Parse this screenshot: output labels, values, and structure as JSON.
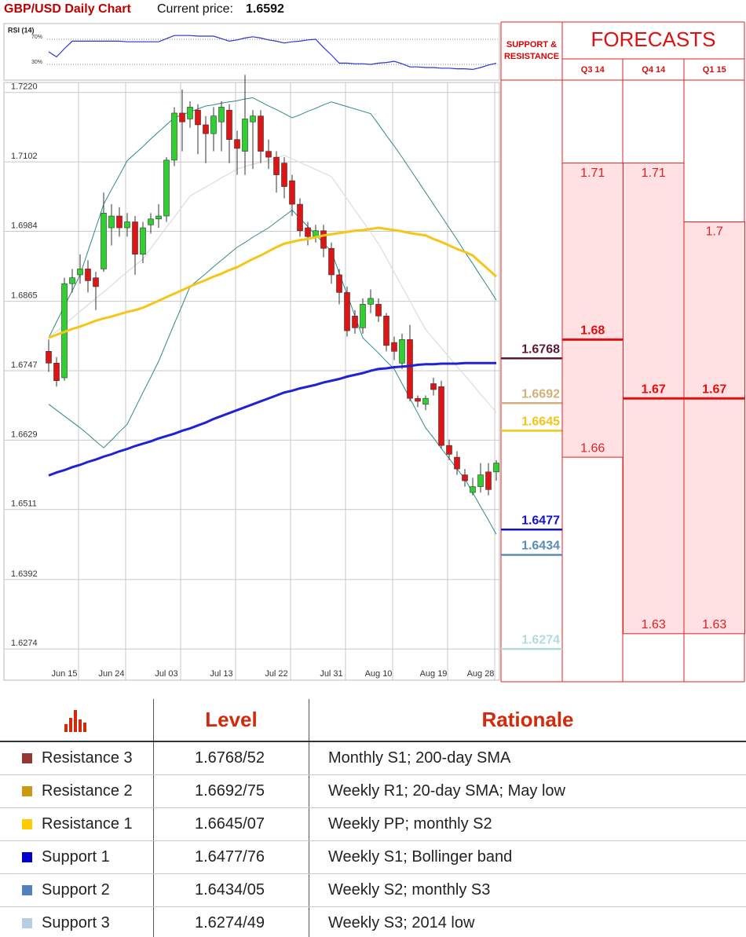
{
  "header": {
    "title": "GBP/USD Daily Chart",
    "price_label": "Current price:",
    "price": 1.6592
  },
  "chart_data": [
    {
      "type": "line",
      "title": "RSI (14)",
      "color": "#2b35c8",
      "values": [
        50,
        42,
        55,
        67,
        67,
        67,
        67,
        67,
        67,
        67,
        66,
        66,
        66,
        66,
        66,
        71,
        76,
        76,
        76,
        75,
        75,
        75,
        71,
        67,
        69,
        72,
        74,
        72,
        69,
        67,
        64,
        66,
        67,
        69,
        70,
        57,
        45,
        32,
        32,
        31,
        31,
        30,
        32,
        33,
        35,
        31,
        26,
        26,
        25,
        25,
        24,
        24,
        23,
        23,
        22,
        25,
        29,
        32
      ],
      "ylim": [
        5,
        95
      ],
      "yticks": [
        {
          "value": 70,
          "label": "70%"
        },
        {
          "value": 30,
          "label": "30%"
        }
      ]
    },
    {
      "type": "candlestick",
      "up_color": "#2ed12e",
      "down_color": "#e01414",
      "grid": true,
      "categories": [
        null,
        null,
        "Jun 15",
        null,
        null,
        null,
        null,
        null,
        "Jun 24",
        null,
        null,
        null,
        null,
        null,
        null,
        "Jul 03",
        null,
        null,
        null,
        null,
        null,
        null,
        "Jul 13",
        null,
        null,
        null,
        null,
        null,
        null,
        "Jul 22",
        null,
        null,
        null,
        null,
        null,
        null,
        "Jul 31",
        null,
        null,
        null,
        null,
        null,
        "Aug 10",
        null,
        null,
        null,
        null,
        null,
        null,
        "Aug 19",
        null,
        null,
        null,
        null,
        null,
        "Aug 28",
        null,
        null
      ],
      "open": [
        1.678,
        1.676,
        1.6735,
        1.6895,
        1.691,
        1.692,
        1.6905,
        1.692,
        1.699,
        1.701,
        1.699,
        1.7,
        1.6945,
        1.6995,
        1.7005,
        1.701,
        1.7105,
        1.7185,
        1.7175,
        1.719,
        1.7165,
        1.715,
        1.717,
        1.719,
        1.714,
        1.712,
        1.717,
        1.718,
        1.712,
        1.711,
        1.71,
        1.707,
        1.703,
        1.699,
        1.6975,
        1.6985,
        1.6955,
        1.691,
        1.688,
        1.684,
        1.682,
        1.686,
        1.686,
        1.684,
        1.6795,
        1.676,
        1.68,
        1.67,
        1.669,
        1.6725,
        1.672,
        1.662,
        1.66,
        1.657,
        1.654,
        1.655,
        1.6575,
        1.6575
      ],
      "high": [
        1.68,
        1.677,
        1.6905,
        1.692,
        1.6945,
        1.6935,
        1.6915,
        1.705,
        1.703,
        1.7025,
        1.7015,
        1.701,
        1.7,
        1.7015,
        1.703,
        1.711,
        1.7195,
        1.7225,
        1.7205,
        1.72,
        1.718,
        1.7195,
        1.7205,
        1.72,
        1.7155,
        1.725,
        1.719,
        1.719,
        1.714,
        1.712,
        1.711,
        1.708,
        1.704,
        1.7,
        1.6995,
        1.6995,
        1.6965,
        1.692,
        1.689,
        1.685,
        1.687,
        1.6885,
        1.687,
        1.6845,
        1.6805,
        1.681,
        1.6825,
        1.6705,
        1.6705,
        1.6735,
        1.673,
        1.663,
        1.661,
        1.658,
        1.6565,
        1.659,
        1.659,
        1.6595
      ],
      "low": [
        1.6745,
        1.672,
        1.673,
        1.688,
        1.6895,
        1.688,
        1.685,
        1.6915,
        1.696,
        1.6975,
        1.6975,
        1.691,
        1.693,
        1.698,
        1.699,
        1.7,
        1.7095,
        1.712,
        1.716,
        1.7115,
        1.71,
        1.712,
        1.712,
        1.71,
        1.708,
        1.708,
        1.709,
        1.71,
        1.709,
        1.705,
        1.704,
        1.701,
        1.6975,
        1.696,
        1.6965,
        1.694,
        1.6895,
        1.686,
        1.6805,
        1.681,
        1.681,
        1.6845,
        1.683,
        1.678,
        1.6765,
        1.675,
        1.6695,
        1.6685,
        1.668,
        1.6705,
        1.6615,
        1.6595,
        1.657,
        1.655,
        1.6535,
        1.654,
        1.6535,
        1.656
      ],
      "close": [
        1.676,
        1.673,
        1.6895,
        1.6905,
        1.692,
        1.69,
        1.689,
        1.7015,
        1.701,
        1.699,
        1.7,
        1.6945,
        1.699,
        1.7005,
        1.701,
        1.7105,
        1.7185,
        1.717,
        1.7195,
        1.7165,
        1.715,
        1.718,
        1.7195,
        1.714,
        1.7125,
        1.7175,
        1.718,
        1.712,
        1.711,
        1.708,
        1.706,
        1.703,
        1.6985,
        1.6975,
        1.6985,
        1.6955,
        1.691,
        1.688,
        1.6815,
        1.682,
        1.686,
        1.687,
        1.684,
        1.679,
        1.678,
        1.68,
        1.67,
        1.6695,
        1.67,
        1.6715,
        1.662,
        1.6605,
        1.658,
        1.656,
        1.655,
        1.657,
        1.6545,
        1.659
      ],
      "series": [
        {
          "color": "#f5c518",
          "values": [
            1.6803,
            1.6808,
            1.6813,
            1.6818,
            1.6822,
            1.6827,
            1.6832,
            1.6836,
            1.6839,
            1.6843,
            1.6847,
            1.685,
            1.6854,
            1.686,
            1.6866,
            1.6872,
            1.6878,
            1.6884,
            1.689,
            1.6896,
            1.6901,
            1.6907,
            1.6912,
            1.6918,
            1.6923,
            1.693,
            1.6937,
            1.6943,
            1.695,
            1.6957,
            1.6963,
            1.6966,
            1.6969,
            1.6971,
            1.6974,
            1.6977,
            1.6979,
            1.6981,
            1.6983,
            1.6985,
            1.6986,
            1.6988,
            1.699,
            1.6988,
            1.6986,
            1.6984,
            1.6981,
            1.6979,
            1.6977,
            1.6971,
            1.6966,
            1.696,
            1.6954,
            1.6949,
            1.6943,
            1.6931,
            1.6919,
            1.6907
          ]
        },
        {
          "color": "#1f22d6",
          "values": [
            1.6569,
            1.6574,
            1.6578,
            1.6583,
            1.6587,
            1.6592,
            1.6596,
            1.6601,
            1.6605,
            1.661,
            1.6614,
            1.6619,
            1.6623,
            1.6627,
            1.6632,
            1.6636,
            1.664,
            1.6645,
            1.6649,
            1.6654,
            1.6659,
            1.6665,
            1.667,
            1.6675,
            1.668,
            1.6685,
            1.669,
            1.6695,
            1.67,
            1.6705,
            1.671,
            1.6713,
            1.6717,
            1.672,
            1.6723,
            1.6727,
            1.673,
            1.6733,
            1.6737,
            1.674,
            1.6743,
            1.6747,
            1.675,
            1.6751,
            1.6753,
            1.6754,
            1.6755,
            1.6757,
            1.6758,
            1.6758,
            1.6759,
            1.6759,
            1.6759,
            1.676,
            1.676,
            1.676,
            1.676,
            1.676
          ]
        },
        {
          "color": "#2a8a8a",
          "values": [
            1.6803,
            1.683,
            1.6857,
            1.6883,
            1.691,
            1.695,
            1.699,
            1.703,
            1.7055,
            1.7079,
            1.7104,
            1.7116,
            1.7128,
            1.7141,
            1.7153,
            1.7165,
            1.7177,
            1.7182,
            1.7187,
            1.7192,
            1.7197,
            1.7199,
            1.7202,
            1.7204,
            1.7206,
            1.7209,
            1.7211,
            1.7204,
            1.7197,
            1.7191,
            1.7184,
            1.7177,
            1.7182,
            1.7188,
            1.7193,
            1.7199,
            1.7204,
            1.72,
            1.7196,
            1.7192,
            1.7188,
            1.7184,
            1.7166,
            1.7147,
            1.7129,
            1.711,
            1.709,
            1.707,
            1.705,
            1.703,
            1.701,
            1.699,
            1.697,
            1.6949,
            1.6929,
            1.6908,
            1.6888,
            1.6867
          ]
        },
        {
          "color": "#2a8a8a",
          "values": [
            1.669,
            1.668,
            1.667,
            1.666,
            1.665,
            1.6639,
            1.6627,
            1.6616,
            1.6629,
            1.6643,
            1.6656,
            1.6683,
            1.671,
            1.6736,
            1.6763,
            1.6795,
            1.6827,
            1.6858,
            1.689,
            1.6901,
            1.6912,
            1.6924,
            1.6935,
            1.6946,
            1.6957,
            1.6965,
            1.6974,
            1.6982,
            1.699,
            1.7,
            1.701,
            1.702,
            1.7006,
            1.6992,
            1.6978,
            1.6964,
            1.695,
            1.6913,
            1.6877,
            1.684,
            1.6803,
            1.679,
            1.6777,
            1.6763,
            1.675,
            1.6725,
            1.67,
            1.6675,
            1.665,
            1.6633,
            1.6615,
            1.6598,
            1.658,
            1.6563,
            1.654,
            1.6516,
            1.6493,
            1.6469
          ]
        },
        {
          "color": "#dcdcdc",
          "values": [
            1.6803,
            1.6814,
            1.6825,
            1.6837,
            1.6848,
            1.6859,
            1.687,
            1.6881,
            1.6892,
            1.6904,
            1.6915,
            1.6926,
            1.6937,
            1.6955,
            1.6973,
            1.6991,
            1.7008,
            1.7026,
            1.7044,
            1.7052,
            1.7059,
            1.7067,
            1.7075,
            1.7082,
            1.709,
            1.7094,
            1.7098,
            1.7101,
            1.7105,
            1.7109,
            1.7113,
            1.7107,
            1.7101,
            1.7095,
            1.7089,
            1.7083,
            1.7077,
            1.7058,
            1.7039,
            1.702,
            1.7001,
            1.6982,
            1.6963,
            1.6939,
            1.6914,
            1.689,
            1.6866,
            1.6841,
            1.6817,
            1.6801,
            1.6786,
            1.677,
            1.6754,
            1.6739,
            1.6723,
            1.6707,
            1.6692,
            1.6676
          ]
        }
      ],
      "ylim": [
        1.6221,
        1.7237
      ],
      "yticks": [
        {
          "value": 1.722,
          "label": "1.7220"
        },
        1.7102,
        1.6984,
        1.6865,
        1.6747,
        1.6629,
        1.6511,
        1.6392,
        1.6274
      ]
    }
  ],
  "support_resistance": {
    "title": "SUPPORT & RESISTANCE",
    "levels": [
      {
        "value": 1.6768,
        "color": "#5c1a36"
      },
      {
        "value": 1.6692,
        "color": "#d2b07a"
      },
      {
        "value": 1.6645,
        "color": "#f2c417"
      },
      {
        "value": 1.6477,
        "color": "#1212c8"
      },
      {
        "value": 1.6434,
        "color": "#5a8db3"
      },
      {
        "value": 1.6274,
        "color": "#b2dcdc"
      }
    ]
  },
  "forecasts": {
    "title": "FORECASTS",
    "periods": [
      {
        "name": "Q3 14",
        "high": 1.71,
        "mid": 1.68,
        "low": 1.66
      },
      {
        "name": "Q4 14",
        "high": 1.71,
        "mid": 1.67,
        "low": 1.63
      },
      {
        "name": "Q1 15",
        "high": 1.7,
        "mid": 1.67,
        "low": 1.63
      }
    ]
  },
  "table": {
    "headers": [
      "Level",
      "Rationale"
    ],
    "rows": [
      {
        "color": "#943634",
        "name": "Resistance 3",
        "level": "1.6768/52",
        "rationale": "Monthly S1; 200-day SMA"
      },
      {
        "color": "#c99a12",
        "name": "Resistance 2",
        "level": "1.6692/75",
        "rationale": "Weekly R1; 20-day SMA; May low"
      },
      {
        "color": "#ffcc00",
        "name": "Resistance 1",
        "level": "1.6645/07",
        "rationale": "Weekly PP; monthly S2"
      },
      {
        "color": "#0000cc",
        "name": "Support 1",
        "level": "1.6477/76",
        "rationale": "Weekly S1; Bollinger band"
      },
      {
        "color": "#4f81bd",
        "name": "Support 2",
        "level": "1.6434/05",
        "rationale": "Weekly S2; monthly S3"
      },
      {
        "color": "#b8cce4",
        "name": "Support 3",
        "level": "1.6274/49",
        "rationale": "Weekly S3; 2014 low"
      }
    ]
  }
}
